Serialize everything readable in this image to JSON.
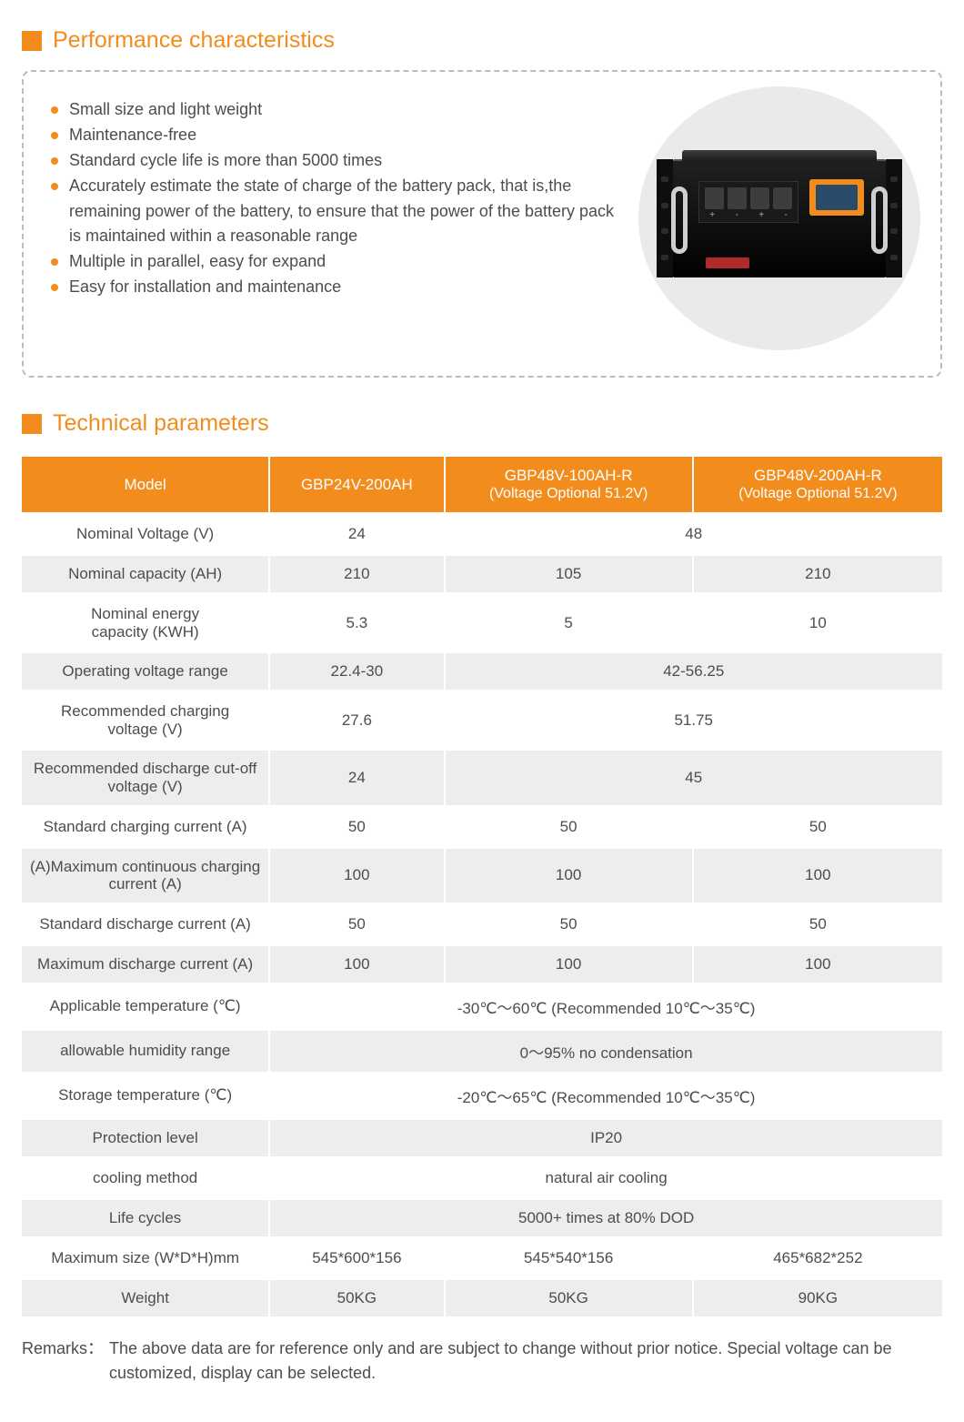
{
  "colors": {
    "accent": "#f28c1d",
    "row_bg": "#ededed",
    "row_alt_bg": "#ffffff",
    "text": "#4d4d4d",
    "dash_border": "#bdbdbd",
    "circle_bg": "#eaeaea"
  },
  "sections": {
    "performance": {
      "title": "Performance characteristics",
      "bullets": [
        "Small size and light weight",
        "Maintenance-free",
        "Standard cycle life is more than 5000 times",
        "Accurately estimate the state of charge of the battery pack, that is,the remaining power of the battery, to ensure that the power of the battery pack is maintained within a reasonable range",
        "Multiple in parallel, easy for expand",
        "Easy for installation and maintenance"
      ]
    },
    "technical": {
      "title": "Technical parameters"
    }
  },
  "table": {
    "header": {
      "c0": "Model",
      "c1": "GBP24V-200AH",
      "c2": "GBP48V-100AH-R",
      "c2_sub": "(Voltage Optional 51.2V)",
      "c3": "GBP48V-200AH-R",
      "c3_sub": "(Voltage Optional 51.2V)"
    },
    "rows": [
      {
        "label": "Nominal Voltage (V)",
        "cells": [
          "24",
          {
            "span": 2,
            "text": "48"
          }
        ]
      },
      {
        "label": "Nominal capacity (AH)",
        "cells": [
          "210",
          "105",
          "210"
        ]
      },
      {
        "label": "Nominal  energy capacity (KWH)",
        "twoline": true,
        "cells": [
          "5.3",
          "5",
          "10"
        ]
      },
      {
        "label": "Operating voltage range",
        "cells": [
          "22.4-30",
          {
            "span": 2,
            "text": "42-56.25"
          }
        ]
      },
      {
        "label": "Recommended charging voltage (V)",
        "twoline": true,
        "cells": [
          "27.6",
          {
            "span": 2,
            "text": "51.75"
          }
        ]
      },
      {
        "label": "Recommended discharge cut-off voltage (V)",
        "twoline": true,
        "cells": [
          "24",
          {
            "span": 2,
            "text": "45"
          }
        ]
      },
      {
        "label": "Standard charging current (A)",
        "cells": [
          "50",
          "50",
          "50"
        ]
      },
      {
        "label": "(A)Maximum continuous charging current (A)",
        "twoline": true,
        "cells": [
          "100",
          "100",
          "100"
        ]
      },
      {
        "label": "Standard discharge current (A)",
        "cells": [
          "50",
          "50",
          "50"
        ]
      },
      {
        "label": "Maximum discharge current (A)",
        "cells": [
          "100",
          "100",
          "100"
        ]
      },
      {
        "label": "Applicable temperature (℃)",
        "cells": [
          {
            "span": 3,
            "text": "-30℃～60℃  (Recommended 10℃～35℃)"
          }
        ]
      },
      {
        "label": "allowable humidity range",
        "cells": [
          {
            "span": 3,
            "text": "0～95% no condensation"
          }
        ]
      },
      {
        "label": "Storage temperature (℃)",
        "cells": [
          {
            "span": 3,
            "text": "-20℃～65℃  (Recommended 10℃～35℃)"
          }
        ]
      },
      {
        "label": "Protection level",
        "cells": [
          {
            "span": 3,
            "text": "IP20"
          }
        ]
      },
      {
        "label": "cooling method",
        "cells": [
          {
            "span": 3,
            "text": "natural air cooling"
          }
        ]
      },
      {
        "label": "Life cycles",
        "cells": [
          {
            "span": 3,
            "text": "5000+ times at 80% DOD"
          }
        ]
      },
      {
        "label": "Maximum size (W*D*H)mm",
        "cells": [
          "545*600*156",
          "545*540*156",
          "465*682*252"
        ]
      },
      {
        "label": "Weight",
        "cells": [
          "50KG",
          "50KG",
          "90KG"
        ]
      }
    ]
  },
  "remarks": {
    "label": "Remarks：",
    "text": "The above data are for reference only and are subject to change without prior notice. Special voltage can be customized, display can be selected."
  }
}
